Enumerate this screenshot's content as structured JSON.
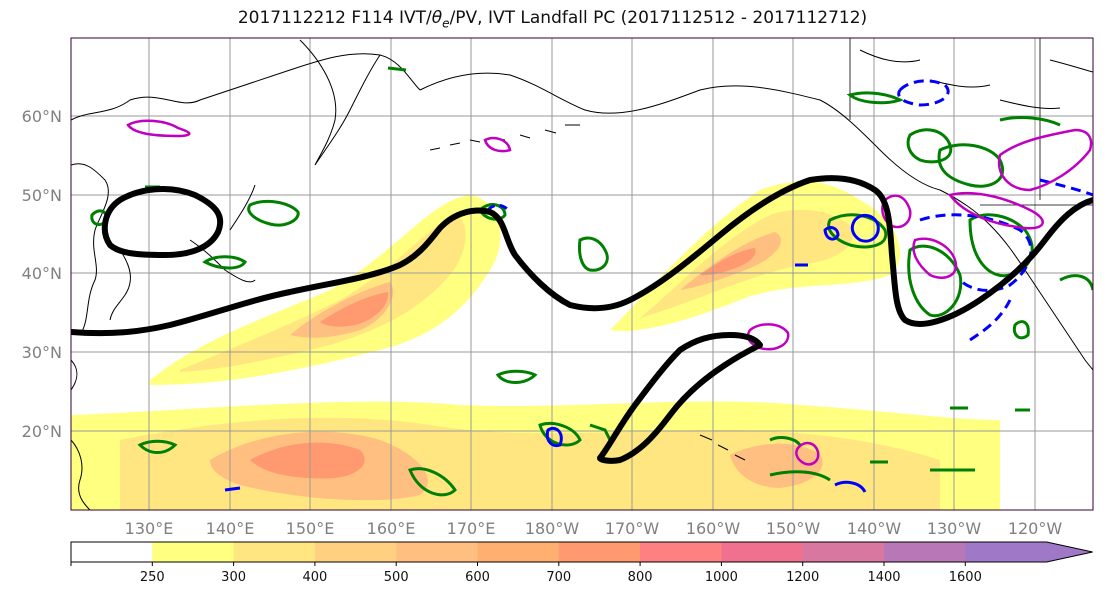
{
  "title": {
    "prefix": "2017112212 F114 IVT/",
    "theta": "θ",
    "theta_sub": "e",
    "suffix": "/PV, IVT Landfall PC (2017112512 - 2017112712)"
  },
  "map": {
    "lat_labels": [
      "60°N",
      "50°N",
      "40°N",
      "30°N",
      "20°N"
    ],
    "lon_labels": [
      "130°E",
      "140°E",
      "150°E",
      "160°E",
      "170°E",
      "180°W",
      "170°W",
      "160°W",
      "150°W",
      "140°W",
      "130°W",
      "120°W"
    ],
    "lon_range": [
      120,
      247
    ],
    "lat_range": [
      10,
      70
    ]
  },
  "colorbar": {
    "labels": [
      "250",
      "300",
      "400",
      "500",
      "600",
      "700",
      "800",
      "1000",
      "1200",
      "1400",
      "1600"
    ],
    "colors": [
      "#ffffff",
      "#ffff80",
      "#ffe680",
      "#ffd080",
      "#ffbf80",
      "#ffb070",
      "#ff9970",
      "#ff8080",
      "#f07090",
      "#d878a0",
      "#b878b8",
      "#a078c8"
    ]
  },
  "colors": {
    "ivt_contour": "#000000",
    "theta_e": "#008000",
    "pv_positive": "#c000c0",
    "pv_negative": "#0000ff",
    "coast": "#000000",
    "grid": "#999999"
  }
}
